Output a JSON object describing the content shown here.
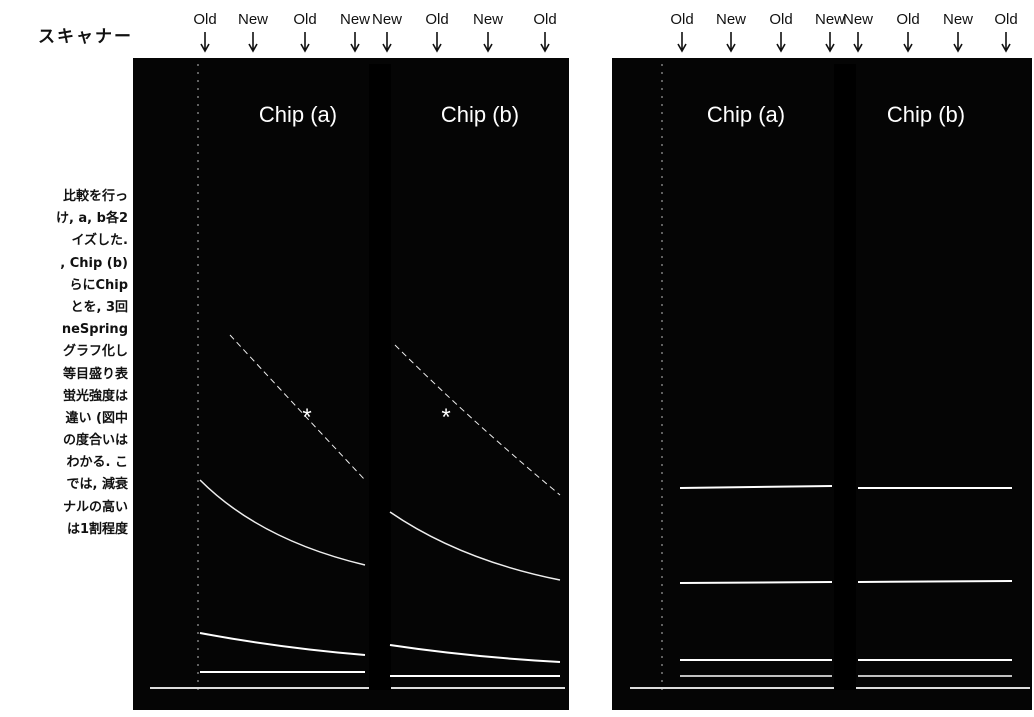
{
  "header": {
    "title": "スキャナー"
  },
  "body_lines": [
    "比較を行っ",
    "け, a, b各2",
    "イズした.",
    ", Chip (b)",
    "らにChip",
    "とを, 3回",
    "neSpring",
    "グラフ化し",
    "等目盛り表",
    "蛍光強度は",
    "違い (図中",
    "の度合いは",
    "わかる. こ",
    "では, 減衰",
    "ナルの高い",
    "は1割程度"
  ],
  "figures": [
    {
      "lane_labels": [
        "Old",
        "New",
        "Old",
        "New",
        "New",
        "Old",
        "New",
        "Old"
      ],
      "chip_labels": [
        "Chip (a)",
        "Chip (b)"
      ],
      "markers": [
        "*",
        "*"
      ]
    },
    {
      "lane_labels": [
        "Old",
        "New",
        "Old",
        "New",
        "New",
        "Old",
        "New",
        "Old"
      ],
      "chip_labels": [
        "Chip (a)",
        "Chip (b)"
      ]
    }
  ]
}
